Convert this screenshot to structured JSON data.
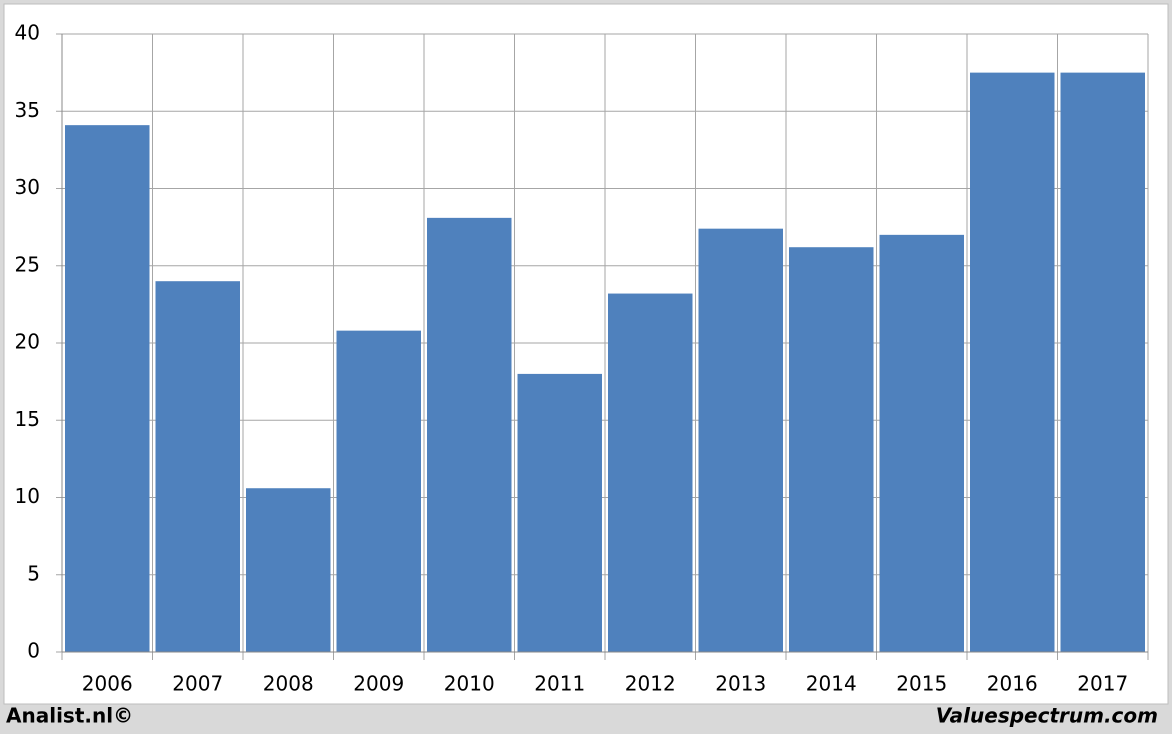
{
  "chart_data": {
    "type": "bar",
    "categories": [
      "2006",
      "2007",
      "2008",
      "2009",
      "2010",
      "2011",
      "2012",
      "2013",
      "2014",
      "2015",
      "2016",
      "2017"
    ],
    "values": [
      34.1,
      24.0,
      10.6,
      20.8,
      28.1,
      18.0,
      23.2,
      27.4,
      26.2,
      27.0,
      37.5,
      37.5
    ],
    "color": "#4f81bd",
    "ylim": [
      0,
      40
    ],
    "yticks": [
      0,
      5,
      10,
      15,
      20,
      25,
      30,
      35,
      40
    ],
    "grid": true,
    "credits": [
      "Analist.nl©",
      "Valuespectrum.com"
    ]
  }
}
